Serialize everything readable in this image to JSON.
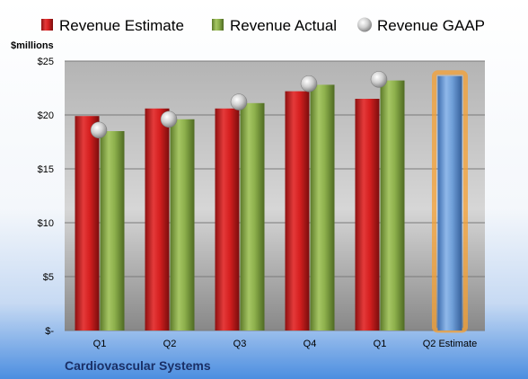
{
  "chart_data": {
    "type": "bar",
    "categories": [
      "Q1",
      "Q2",
      "Q3",
      "Q4",
      "Q1",
      "Q2 Estimate"
    ],
    "series": [
      {
        "name": "Revenue Estimate",
        "kind": "bar",
        "color": "#d62728",
        "values": [
          19.9,
          20.6,
          20.6,
          22.2,
          21.5,
          null
        ]
      },
      {
        "name": "Revenue Actual",
        "kind": "bar",
        "color": "#8db04c",
        "values": [
          18.5,
          19.6,
          21.1,
          22.8,
          23.2,
          null
        ]
      },
      {
        "name": "Revenue GAAP",
        "kind": "marker",
        "color": "#b8b8b8",
        "values": [
          18.6,
          19.6,
          21.2,
          22.9,
          23.3,
          null
        ]
      },
      {
        "name": "",
        "kind": "bar",
        "color": "#6f9fd8",
        "values": [
          null,
          null,
          null,
          null,
          null,
          23.6
        ]
      }
    ],
    "y_ticks": [
      "$-",
      "$5",
      "$10",
      "$15",
      "$20",
      "$25"
    ],
    "ylim": [
      0,
      25
    ],
    "ylabel": "$millions",
    "xlabel": "",
    "title": "",
    "footer": "Cardiovascular Systems",
    "legend": {
      "position": "top",
      "entries": [
        "Revenue Estimate",
        "Revenue Actual",
        "Revenue GAAP"
      ]
    },
    "grid": true,
    "highlight_color": "#f5a033"
  }
}
